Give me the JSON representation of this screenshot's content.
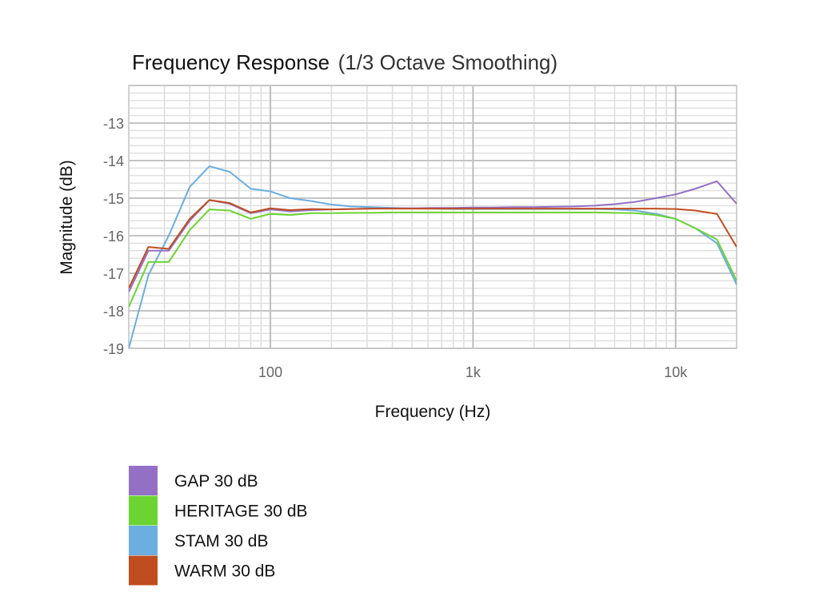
{
  "chart_data": {
    "type": "line",
    "title": "Frequency Response",
    "subtitle": "(1/3 Octave Smoothing)",
    "xlabel": "Frequency (Hz)",
    "ylabel": "Magnitude (dB)",
    "x_scale": "log",
    "xlim": [
      20,
      20000
    ],
    "ylim": [
      -19,
      -12
    ],
    "x_ticks": [
      {
        "value": 100,
        "label": "100"
      },
      {
        "value": 1000,
        "label": "1k"
      },
      {
        "value": 10000,
        "label": "10k"
      }
    ],
    "y_ticks": [
      {
        "value": -13,
        "label": "-13"
      },
      {
        "value": -14,
        "label": "-14"
      },
      {
        "value": -15,
        "label": "-15"
      },
      {
        "value": -16,
        "label": "-16"
      },
      {
        "value": -17,
        "label": "-17"
      },
      {
        "value": -18,
        "label": "-18"
      },
      {
        "value": -19,
        "label": "-19"
      }
    ],
    "grid": true,
    "legend_position": "bottom-left",
    "x": [
      20,
      25,
      31.5,
      40,
      50,
      63,
      80,
      100,
      125,
      160,
      200,
      250,
      315,
      400,
      500,
      630,
      800,
      1000,
      1250,
      1600,
      2000,
      2500,
      3150,
      4000,
      5000,
      6300,
      8000,
      10000,
      12500,
      16000,
      20000
    ],
    "series": [
      {
        "name": "GAP 30 dB",
        "color": "#9370c5",
        "values": [
          -17.5,
          -16.4,
          -16.4,
          -15.6,
          -15.05,
          -15.15,
          -15.4,
          -15.3,
          -15.35,
          -15.32,
          -15.3,
          -15.29,
          -15.28,
          -15.27,
          -15.27,
          -15.26,
          -15.26,
          -15.25,
          -15.25,
          -15.24,
          -15.24,
          -15.23,
          -15.22,
          -15.2,
          -15.16,
          -15.1,
          -15.0,
          -14.9,
          -14.75,
          -14.55,
          -15.15
        ]
      },
      {
        "name": "HERITAGE 30 dB",
        "color": "#6cd432",
        "values": [
          -17.9,
          -16.7,
          -16.7,
          -15.85,
          -15.3,
          -15.33,
          -15.55,
          -15.42,
          -15.45,
          -15.4,
          -15.4,
          -15.39,
          -15.39,
          -15.38,
          -15.38,
          -15.38,
          -15.38,
          -15.38,
          -15.38,
          -15.38,
          -15.38,
          -15.38,
          -15.38,
          -15.38,
          -15.39,
          -15.4,
          -15.45,
          -15.55,
          -15.8,
          -16.1,
          -17.2
        ]
      },
      {
        "name": "STAM 30 dB",
        "color": "#6baee0",
        "values": [
          -19.0,
          -17.05,
          -16.0,
          -14.7,
          -14.15,
          -14.3,
          -14.75,
          -14.82,
          -15.0,
          -15.08,
          -15.17,
          -15.22,
          -15.24,
          -15.26,
          -15.27,
          -15.28,
          -15.29,
          -15.29,
          -15.29,
          -15.29,
          -15.29,
          -15.29,
          -15.29,
          -15.29,
          -15.3,
          -15.33,
          -15.42,
          -15.55,
          -15.8,
          -16.2,
          -17.3
        ]
      },
      {
        "name": "WARM 30 dB",
        "color": "#c04d1f",
        "values": [
          -17.4,
          -16.3,
          -16.35,
          -15.55,
          -15.05,
          -15.13,
          -15.38,
          -15.27,
          -15.32,
          -15.29,
          -15.3,
          -15.29,
          -15.28,
          -15.28,
          -15.28,
          -15.28,
          -15.28,
          -15.28,
          -15.28,
          -15.28,
          -15.28,
          -15.28,
          -15.28,
          -15.28,
          -15.28,
          -15.28,
          -15.28,
          -15.29,
          -15.33,
          -15.42,
          -16.3
        ]
      }
    ]
  }
}
